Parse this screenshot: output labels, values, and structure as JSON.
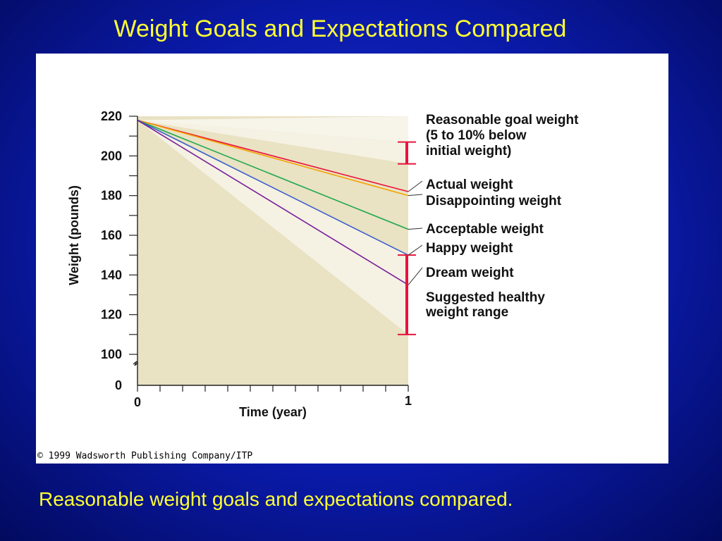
{
  "slide": {
    "title": "Weight Goals and Expectations Compared",
    "caption": "Reasonable weight goals and expectations compared."
  },
  "credit": "© 1999 Wadsworth Publishing Company/ITP",
  "colors": {
    "background": "#0a1aa8",
    "title_text": "#ffff33",
    "plot_area": "#e9e2c3",
    "shaded_band": "#f5f2e4",
    "bracket": "#e8143c"
  },
  "chart_data": {
    "type": "line",
    "xlabel": "Time (year)",
    "ylabel": "Weight (pounds)",
    "x_ticks": [
      "0",
      "1"
    ],
    "y_ticks": [
      "220",
      "200",
      "180",
      "160",
      "140",
      "120",
      "100",
      "0"
    ],
    "x": [
      0,
      1
    ],
    "xlim": [
      0,
      1
    ],
    "ylim": [
      100,
      220
    ],
    "y_axis_break": true,
    "series": [
      {
        "name": "Actual weight",
        "color": "#e8143c",
        "values": [
          218,
          182
        ]
      },
      {
        "name": "Disappointing weight",
        "color": "#f5a300",
        "values": [
          218,
          180
        ]
      },
      {
        "name": "Acceptable weight",
        "color": "#1aa84a",
        "values": [
          218,
          163
        ]
      },
      {
        "name": "Happy weight",
        "color": "#3a5fc8",
        "values": [
          218,
          150
        ]
      },
      {
        "name": "Dream weight",
        "color": "#7a1e9a",
        "values": [
          218,
          135
        ]
      }
    ],
    "bands": [
      {
        "name": "Reasonable goal weight (5 to 10% below initial weight)",
        "range_at_end": [
          196,
          207
        ]
      },
      {
        "name": "Suggested healthy weight range",
        "range_at_end": [
          110,
          150
        ]
      }
    ],
    "legend_labels": [
      {
        "key": "goal1",
        "text": "Reasonable goal weight"
      },
      {
        "key": "goal2",
        "text": "(5 to 10% below"
      },
      {
        "key": "goal3",
        "text": "initial weight)"
      },
      {
        "key": "actual",
        "text": "Actual weight"
      },
      {
        "key": "disappointing",
        "text": "Disappointing weight"
      },
      {
        "key": "acceptable",
        "text": "Acceptable weight"
      },
      {
        "key": "happy",
        "text": "Happy weight"
      },
      {
        "key": "dream",
        "text": "Dream weight"
      },
      {
        "key": "healthy1",
        "text": "Suggested healthy"
      },
      {
        "key": "healthy2",
        "text": "weight range"
      }
    ]
  }
}
